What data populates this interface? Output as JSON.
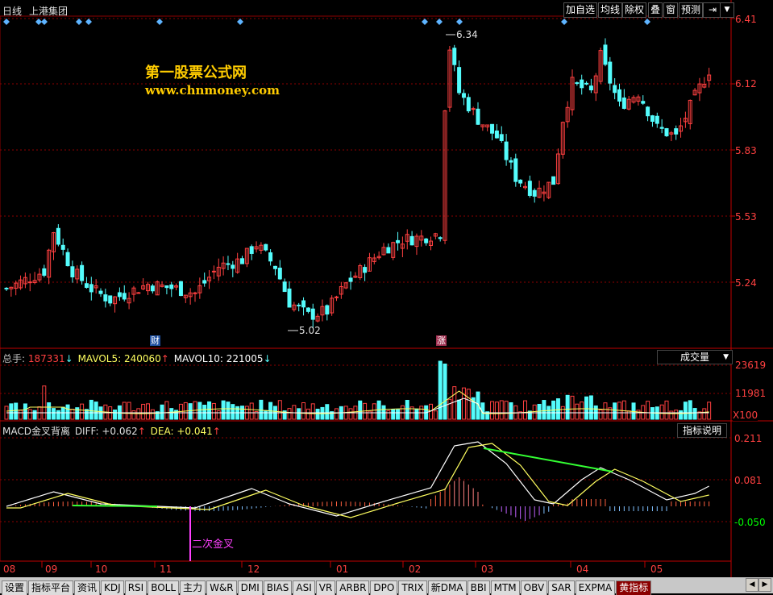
{
  "header": {
    "period": "日线",
    "stock_name": "上港集团",
    "buttons": [
      "加自选",
      "均线",
      "除权",
      "叠",
      "窗",
      "预测"
    ],
    "nav_icon": "arrow-right-bar-icon",
    "dropdown_icon": "triangle-down-icon"
  },
  "watermark": {
    "line1": "第一股票公式网",
    "line2": "www.chnmoney.com"
  },
  "price_panel": {
    "y_ticks": [
      "6.41",
      "6.12",
      "5.83",
      "5.53",
      "5.24"
    ],
    "high_label": "6.34",
    "low_label": "5.02",
    "badges": [
      "财",
      "涨"
    ]
  },
  "volume_panel": {
    "legend": {
      "total_label": "总手: ",
      "total_value": "187331",
      "mavol5_label": "MAVOL5: ",
      "mavol5_value": "240060",
      "mavol10_label": "MAVOL10: ",
      "mavol10_value": "221005"
    },
    "dropdown": "成交量",
    "y_ticks": [
      "23619",
      "11981"
    ],
    "unit": "X100"
  },
  "macd_panel": {
    "legend": {
      "name": "MACD金叉背离",
      "diff_label": "DIFF: ",
      "diff_value": "+0.062",
      "dea_label": "DEA: ",
      "dea_value": "+0.041"
    },
    "button": "指标说明",
    "y_ticks": [
      "0.211",
      "0.081",
      "-0.050"
    ],
    "annotation": "二次金叉"
  },
  "x_axis": [
    "08",
    "09",
    "10",
    "11",
    "12",
    "01",
    "02",
    "03",
    "04",
    "05"
  ],
  "tabs": [
    "设置",
    "指标平台",
    "资讯",
    "KDJ",
    "RSI",
    "BOLL",
    "主力",
    "W&R",
    "DMI",
    "BIAS",
    "ASI",
    "VR",
    "ARBR",
    "DPO",
    "TRIX",
    "新DMA",
    "BBI",
    "MTM",
    "OBV",
    "SAR",
    "EXPMA",
    "黄指标"
  ],
  "active_tab": "黄指标",
  "colors": {
    "up": "#ff4040",
    "down": "#54fcfc",
    "axis": "#c00000",
    "diff_line": "#ffffff",
    "dea_line": "#ffff60",
    "divergence": "#33ff33",
    "annotation": "#ff40ff",
    "marker": "#5eb4ff"
  },
  "chart_data": {
    "type": "candlestick",
    "price_range": [
      5.02,
      6.41
    ],
    "high": 6.34,
    "low": 5.02,
    "macd_range": [
      -0.05,
      0.211
    ],
    "volume_ticks": [
      11981,
      23619
    ]
  }
}
